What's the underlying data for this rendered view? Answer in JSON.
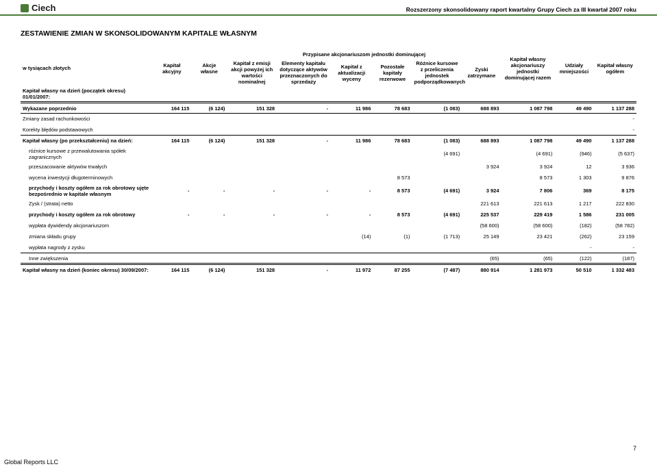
{
  "header": {
    "logo_text": "Ciech",
    "caption": "Rozszerzony skonsolidowany raport kwartalny Grupy Ciech za III kwartał 2007 roku"
  },
  "title": "ZESTAWIENIE ZMIAN W SKONSOLIDOWANYM KAPITALE WŁASNYM",
  "columns": {
    "row_label": "w tysiącach złotych",
    "super_group": "Przypisane akcjonariuszom jednostki dominującej",
    "c1": "Kapitał akcyjny",
    "c2": "Akcje własne",
    "c3": "Kapitał z emisji akcji powyżej ich wartości nominalnej",
    "c4": "Elementy kapitału dotyczące aktywów przeznaczonych do sprzedaży",
    "c5": "Kapitał z aktualizacji wyceny",
    "c6": "Pozostałe kapitały rezerwowe",
    "c7": "Różnice kursowe z przeliczenia jednostek podporządkowanych",
    "c8": "Zyski zatrzymane",
    "c9": "Kapitał własny akcjonariuszy jednostki dominującej razem",
    "c10": "Udziały mniejszości",
    "c11": "Kapitał własny ogółem"
  },
  "rows": [
    {
      "label": "Kapitał własny na dzień (początek okresu) 01/01/2007:",
      "bold": true,
      "vals": [
        "",
        "",
        "",
        "",
        "",
        "",
        "",
        "",
        "",
        "",
        ""
      ]
    },
    {
      "label": "Wykazane poprzednio",
      "bold": true,
      "border": "double-top thin-bottom",
      "vals": [
        "164 115",
        "(6 124)",
        "151 328",
        "-",
        "11 986",
        "78 683",
        "(1 083)",
        "688 893",
        "1 087 798",
        "49 490",
        "1 137 288"
      ]
    },
    {
      "label": "Zmiany zasad rachunkowości",
      "vals": [
        "",
        "",
        "",
        "",
        "",
        "",
        "",
        "",
        "",
        "",
        "-"
      ]
    },
    {
      "label": "Korekty błędów podstawowych",
      "border": "thin-bottom",
      "vals": [
        "",
        "",
        "",
        "",
        "",
        "",
        "",
        "",
        "",
        "",
        "-"
      ]
    },
    {
      "label": "Kapitał własny (po przekształceniu) na dzień:",
      "bold": true,
      "vals": [
        "164 115",
        "(6 124)",
        "151 328",
        "-",
        "11 986",
        "78 683",
        "(1 083)",
        "688 893",
        "1 087 798",
        "49 490",
        "1 137 288"
      ]
    },
    {
      "label": "różnice kursowe z przewalutowania spółek zagranicznych",
      "indent": true,
      "vals": [
        "",
        "",
        "",
        "",
        "",
        "",
        "(4 691)",
        "",
        "(4 691)",
        "(946)",
        "(5 637)"
      ]
    },
    {
      "label": "przeszacowanie aktywów trwałych",
      "indent": true,
      "vals": [
        "",
        "",
        "",
        "",
        "",
        "",
        "",
        "3 924",
        "3 924",
        "12",
        "3 936"
      ]
    },
    {
      "label": "wycena inwestycji długoterminowych",
      "indent": true,
      "vals": [
        "",
        "",
        "",
        "",
        "",
        "8 573",
        "",
        "",
        "8 573",
        "1 303",
        "9 876"
      ]
    },
    {
      "label": "przychody i koszty ogółem za rok obrotowy ujęte bezpośrednio w kapitale własnym",
      "bold": true,
      "indent": true,
      "vals": [
        "-",
        "-",
        "-",
        "-",
        "-",
        "8 573",
        "(4 691)",
        "3 924",
        "7 806",
        "369",
        "8 175"
      ]
    },
    {
      "label": "Zysk / (strata) netto",
      "indent": true,
      "vals": [
        "",
        "",
        "",
        "",
        "",
        "",
        "",
        "221 613",
        "221 613",
        "1 217",
        "222 830"
      ]
    },
    {
      "label": "przychody i koszty ogółem za rok obrotowy",
      "bold": true,
      "indent": true,
      "vals": [
        "-",
        "-",
        "-",
        "-",
        "-",
        "8 573",
        "(4 691)",
        "225 537",
        "229 419",
        "1 586",
        "231 005"
      ]
    },
    {
      "label": "wypłata dywidendy akcjonariuszom",
      "indent": true,
      "vals": [
        "",
        "",
        "",
        "",
        "",
        "",
        "",
        "(58 600)",
        "(58 600)",
        "(182)",
        "(58 782)"
      ]
    },
    {
      "label": "zmiana składu grupy",
      "indent": true,
      "vals": [
        "",
        "",
        "",
        "",
        "(14)",
        "(1)",
        "(1 713)",
        "25 149",
        "23 421",
        "(262)",
        "23 159"
      ]
    },
    {
      "label": "wypłata nagrody z zysku",
      "indent": true,
      "vals": [
        "",
        "",
        "",
        "",
        "",
        "",
        "",
        "",
        "",
        "-",
        "-"
      ]
    },
    {
      "label": "Inne zwiększenia",
      "indent": true,
      "border": "row-border-top thin-bottom",
      "vals": [
        "",
        "",
        "",
        "",
        "",
        "",
        "",
        "(65)",
        "(65)",
        "(122)",
        "(187)"
      ]
    },
    {
      "label": "Kapitał własny na dzień (koniec okresu) 30/09/2007:",
      "bold": true,
      "border": "double-top",
      "vals": [
        "164 115",
        "(6 124)",
        "151 328",
        "-",
        "11 972",
        "87 255",
        "(7 487)",
        "880 914",
        "1 281 973",
        "50 510",
        "1 332 483"
      ]
    }
  ],
  "footer": {
    "left": "Global Reports LLC",
    "page": "7"
  },
  "col_widths": [
    "185px",
    "55px",
    "50px",
    "70px",
    "75px",
    "60px",
    "55px",
    "70px",
    "55px",
    "75px",
    "55px",
    "60px"
  ]
}
